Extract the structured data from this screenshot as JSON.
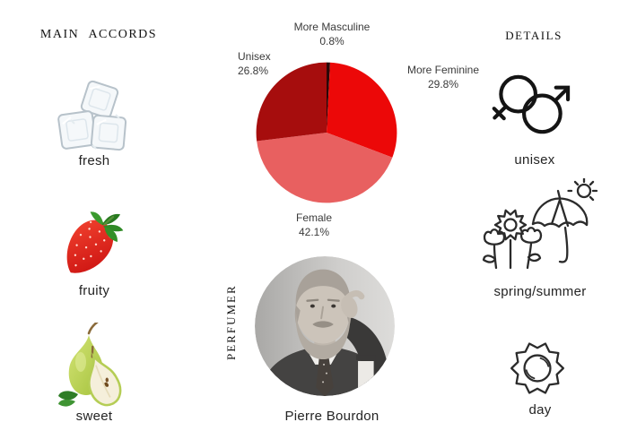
{
  "main_accords": {
    "title": "MAIN ACCORDS",
    "items": [
      {
        "label": "fresh",
        "icon": "ice-cubes-icon"
      },
      {
        "label": "fruity",
        "icon": "strawberry-icon"
      },
      {
        "label": "sweet",
        "icon": "pear-icon"
      }
    ]
  },
  "details": {
    "title": "DETAILS",
    "items": [
      {
        "label": "unisex",
        "icon": "gender-unisex-icon"
      },
      {
        "label": "spring/summer",
        "icon": "spring-summer-icon"
      },
      {
        "label": "day",
        "icon": "day-sun-icon"
      }
    ]
  },
  "perfumer": {
    "section_title": "PERFUMER",
    "name": "Pierre Bourdon",
    "photo": "pierre-bourdon-portrait"
  },
  "chart_data": {
    "type": "pie",
    "categories": [
      "More Masculine",
      "More Feminine",
      "Female",
      "Unisex"
    ],
    "values": [
      0.8,
      29.8,
      42.1,
      26.8
    ],
    "pct_labels": [
      "0.8%",
      "29.8%",
      "42.1%",
      "26.8%"
    ],
    "colors": [
      "#2b0808",
      "#ec0808",
      "#e86060",
      "#a60d0d"
    ],
    "start_angle_deg": 0,
    "direction": "clockwise",
    "labels_position": "outside",
    "legend": "none"
  }
}
